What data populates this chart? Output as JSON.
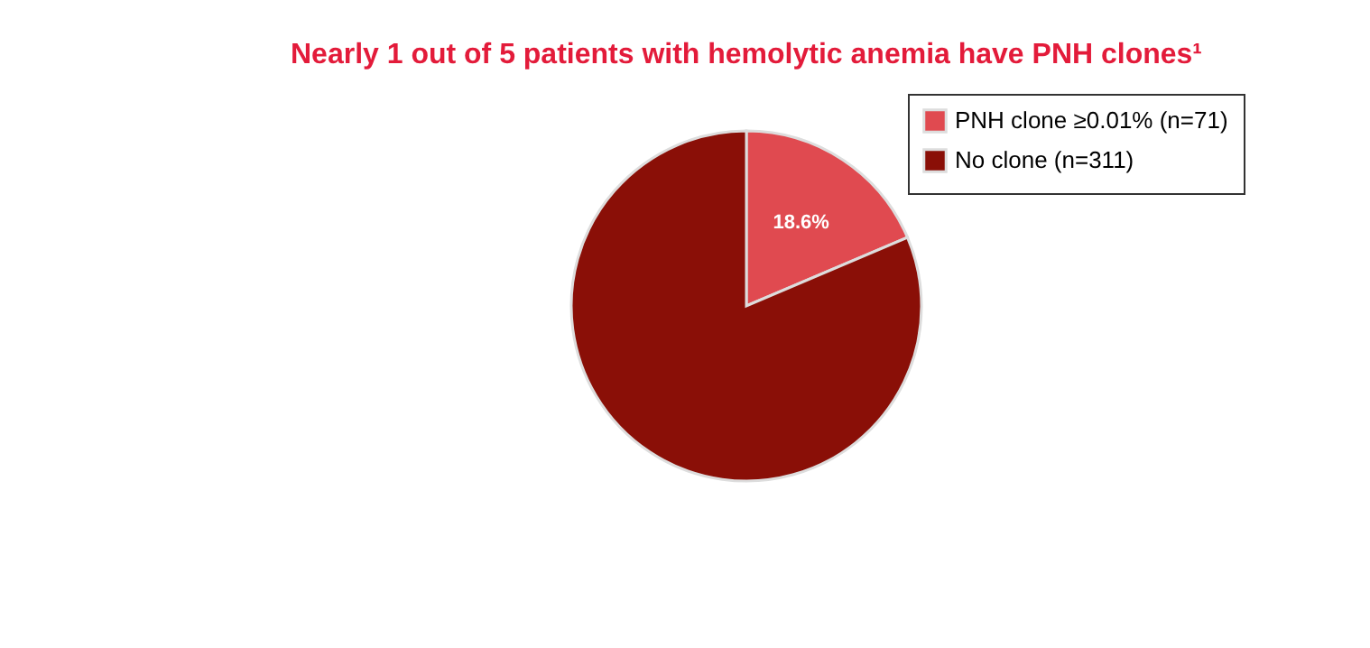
{
  "chart_data": {
    "type": "pie",
    "title": "Nearly 1 out of 5 patients with hemolytic anemia have PNH clones¹",
    "categories": [
      "PNH clone ≥0.01% (n=71)",
      "No clone (n=311)"
    ],
    "values": [
      18.6,
      81.4
    ],
    "colors": [
      "#e04a50",
      "#8a0f07"
    ],
    "value_labels": [
      "18.6%",
      null
    ],
    "legend": "top right"
  }
}
